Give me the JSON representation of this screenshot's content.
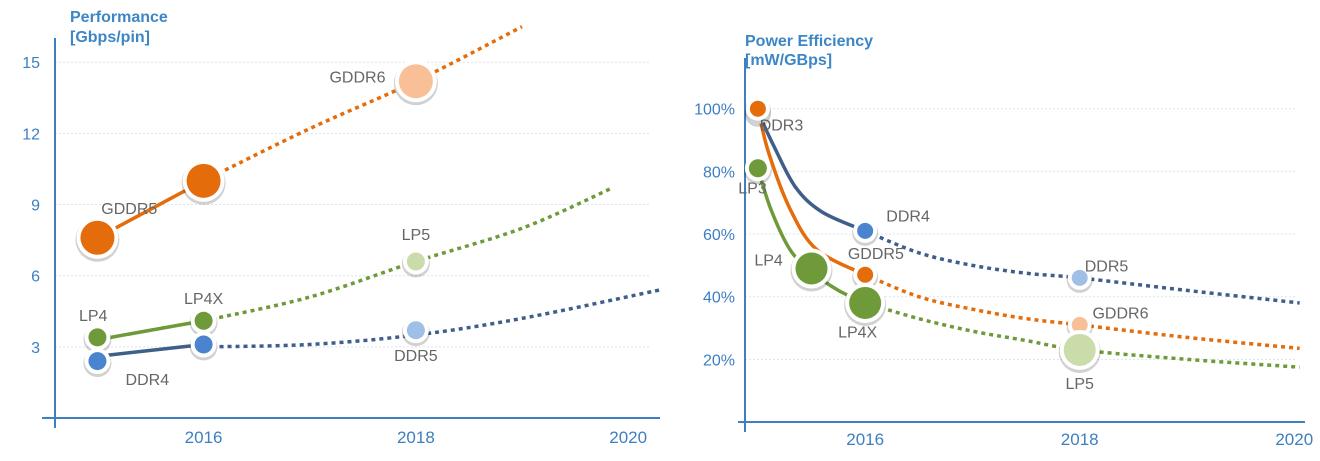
{
  "colors": {
    "axis": "#3d7fc0",
    "grid": "#d9e4ef",
    "gddr": "#e46c0a",
    "gddr_light": "#f9c097",
    "lp": "#6e9a3a",
    "lp_light": "#c9dca9",
    "ddr": "#3f5f8a",
    "ddr_dot": "#4a84cf",
    "ddr_light": "#9fbfe6",
    "label": "#666666"
  },
  "chart_data": [
    {
      "type": "line",
      "title": "Performance\n[Gbps/pin]",
      "title_lines": [
        "Performance",
        "[Gbps/pin]"
      ],
      "x_ticks": [
        "2016",
        "2018",
        "2020"
      ],
      "y_ticks": [
        "15",
        "12",
        "9",
        "6",
        "3"
      ],
      "xlim": [
        2014.6,
        2020.3
      ],
      "ylim": [
        0,
        15.6
      ],
      "grid": true,
      "series": [
        {
          "name": "GDDR",
          "color": "gddr",
          "solid": [
            [
              2015,
              7.6
            ],
            [
              2016,
              10
            ]
          ],
          "dotted": [
            [
              2016,
              10
            ],
            [
              2017,
              12.2
            ],
            [
              2018,
              14.2
            ],
            [
              2019,
              16.5
            ]
          ],
          "points": [
            {
              "x": 2015,
              "y": 7.6,
              "r": 17,
              "fill": "gddr"
            },
            {
              "x": 2016,
              "y": 10,
              "r": 17,
              "fill": "gddr"
            },
            {
              "x": 2018,
              "y": 14.2,
              "r": 17,
              "fill": "gddr_light"
            }
          ],
          "labels": [
            {
              "text": "GDDR5",
              "x": 2015.3,
              "y": 8.6
            },
            {
              "text": "GDDR6",
              "x": 2017.45,
              "y": 14.15
            }
          ]
        },
        {
          "name": "LP",
          "color": "lp",
          "solid": [
            [
              2015,
              3.3
            ],
            [
              2016,
              4.1
            ]
          ],
          "dotted": [
            [
              2016,
              4.1
            ],
            [
              2017,
              5.1
            ],
            [
              2018,
              6.6
            ],
            [
              2019,
              8.0
            ],
            [
              2019.85,
              9.7
            ]
          ],
          "points": [
            {
              "x": 2015,
              "y": 3.4,
              "r": 9,
              "fill": "lp"
            },
            {
              "x": 2016,
              "y": 4.1,
              "r": 9,
              "fill": "lp"
            },
            {
              "x": 2018,
              "y": 6.6,
              "r": 9,
              "fill": "lp_light"
            }
          ],
          "labels": [
            {
              "text": "LP4",
              "x": 2014.96,
              "y": 4.1
            },
            {
              "text": "LP4X",
              "x": 2016.0,
              "y": 4.8
            },
            {
              "text": "LP5",
              "x": 2018.0,
              "y": 7.5
            }
          ]
        },
        {
          "name": "DDR",
          "color": "ddr",
          "solid": [
            [
              2015,
              2.6
            ],
            [
              2016,
              3.1
            ]
          ],
          "dotted": [
            [
              2016,
              3.0
            ],
            [
              2017,
              3.1
            ],
            [
              2018,
              3.5
            ],
            [
              2019,
              4.2
            ],
            [
              2020.3,
              5.4
            ]
          ],
          "points": [
            {
              "x": 2015,
              "y": 2.4,
              "r": 9,
              "fill": "ddr_dot"
            },
            {
              "x": 2016,
              "y": 3.1,
              "r": 9,
              "fill": "ddr_dot"
            },
            {
              "x": 2018,
              "y": 3.7,
              "r": 9,
              "fill": "ddr_light"
            }
          ],
          "labels": [
            {
              "text": "DDR4",
              "x": 2015.47,
              "y": 1.4
            },
            {
              "text": "DDR5",
              "x": 2018.0,
              "y": 2.4
            }
          ]
        }
      ]
    },
    {
      "type": "line",
      "title": "Power Efficiency\n[mW/GBps]",
      "title_lines": [
        "Power Efficiency",
        "[mW/GBps]"
      ],
      "x_ticks": [
        "2016",
        "2018",
        "2020"
      ],
      "y_ticks": [
        "100%",
        "80%",
        "60%",
        "40%",
        "20%"
      ],
      "xlim": [
        2014.88,
        2020.1
      ],
      "ylim": [
        0,
        113
      ],
      "grid": true,
      "series": [
        {
          "name": "DDR",
          "color": "ddr",
          "solid": [
            [
              2015,
              99
            ],
            [
              2015.15,
              88
            ],
            [
              2015.35,
              75
            ],
            [
              2015.6,
              67
            ],
            [
              2016,
              61
            ]
          ],
          "dotted": [
            [
              2016,
              61
            ],
            [
              2016.5,
              54
            ],
            [
              2017,
              50
            ],
            [
              2017.5,
              47.5
            ],
            [
              2018,
              46
            ],
            [
              2019,
              42
            ],
            [
              2020.05,
              38
            ]
          ],
          "points": [
            {
              "x": 2015,
              "y": 99,
              "r": 8,
              "fill": "ddr_dot"
            },
            {
              "x": 2016,
              "y": 61,
              "r": 8,
              "fill": "ddr_dot"
            },
            {
              "x": 2018,
              "y": 46,
              "r": 8,
              "fill": "ddr_light"
            }
          ],
          "labels": [
            {
              "text": "DDR3",
              "x": 2015.22,
              "y": 93
            },
            {
              "text": "DDR4",
              "x": 2016.4,
              "y": 64
            },
            {
              "text": "DDR5",
              "x": 2018.25,
              "y": 48
            }
          ]
        },
        {
          "name": "GDDR",
          "color": "gddr",
          "solid": [
            [
              2015,
              100
            ],
            [
              2015.1,
              86
            ],
            [
              2015.3,
              68
            ],
            [
              2015.55,
              55
            ],
            [
              2016,
              47
            ]
          ],
          "dotted": [
            [
              2016,
              47
            ],
            [
              2016.5,
              40
            ],
            [
              2017,
              36
            ],
            [
              2017.5,
              33
            ],
            [
              2018,
              31
            ],
            [
              2019,
              27
            ],
            [
              2020.05,
              23.5
            ]
          ],
          "points": [
            {
              "x": 2015,
              "y": 100,
              "r": 8,
              "fill": "gddr"
            },
            {
              "x": 2016,
              "y": 47,
              "r": 8,
              "fill": "gddr"
            },
            {
              "x": 2018,
              "y": 31,
              "r": 8,
              "fill": "gddr_light"
            }
          ],
          "labels": [
            {
              "text": "GDDR5",
              "x": 2016.1,
              "y": 52
            },
            {
              "text": "GDDR6",
              "x": 2018.38,
              "y": 33
            }
          ]
        },
        {
          "name": "LP",
          "color": "lp",
          "solid": [
            [
              2015,
              81
            ],
            [
              2015.12,
              68
            ],
            [
              2015.3,
              55
            ],
            [
              2015.5,
              48
            ],
            [
              2015.75,
              42
            ],
            [
              2016,
              38
            ]
          ],
          "dotted": [
            [
              2016,
              38
            ],
            [
              2016.5,
              33
            ],
            [
              2017,
              29
            ],
            [
              2017.5,
              26
            ],
            [
              2018,
              23
            ],
            [
              2019,
              20
            ],
            [
              2020.05,
              17.5
            ]
          ],
          "points": [
            {
              "x": 2015,
              "y": 81,
              "r": 9,
              "fill": "lp"
            },
            {
              "x": 2015.5,
              "y": 49,
              "r": 16,
              "fill": "lp"
            },
            {
              "x": 2016,
              "y": 38,
              "r": 16,
              "fill": "lp"
            },
            {
              "x": 2018,
              "y": 23,
              "r": 16,
              "fill": "lp_light"
            }
          ],
          "labels": [
            {
              "text": "LP3",
              "x": 2014.95,
              "y": 73
            },
            {
              "text": "LP4",
              "x": 2015.1,
              "y": 50
            },
            {
              "text": "LP4X",
              "x": 2015.93,
              "y": 27
            },
            {
              "text": "LP5",
              "x": 2018.0,
              "y": 10.5
            }
          ]
        }
      ]
    }
  ]
}
